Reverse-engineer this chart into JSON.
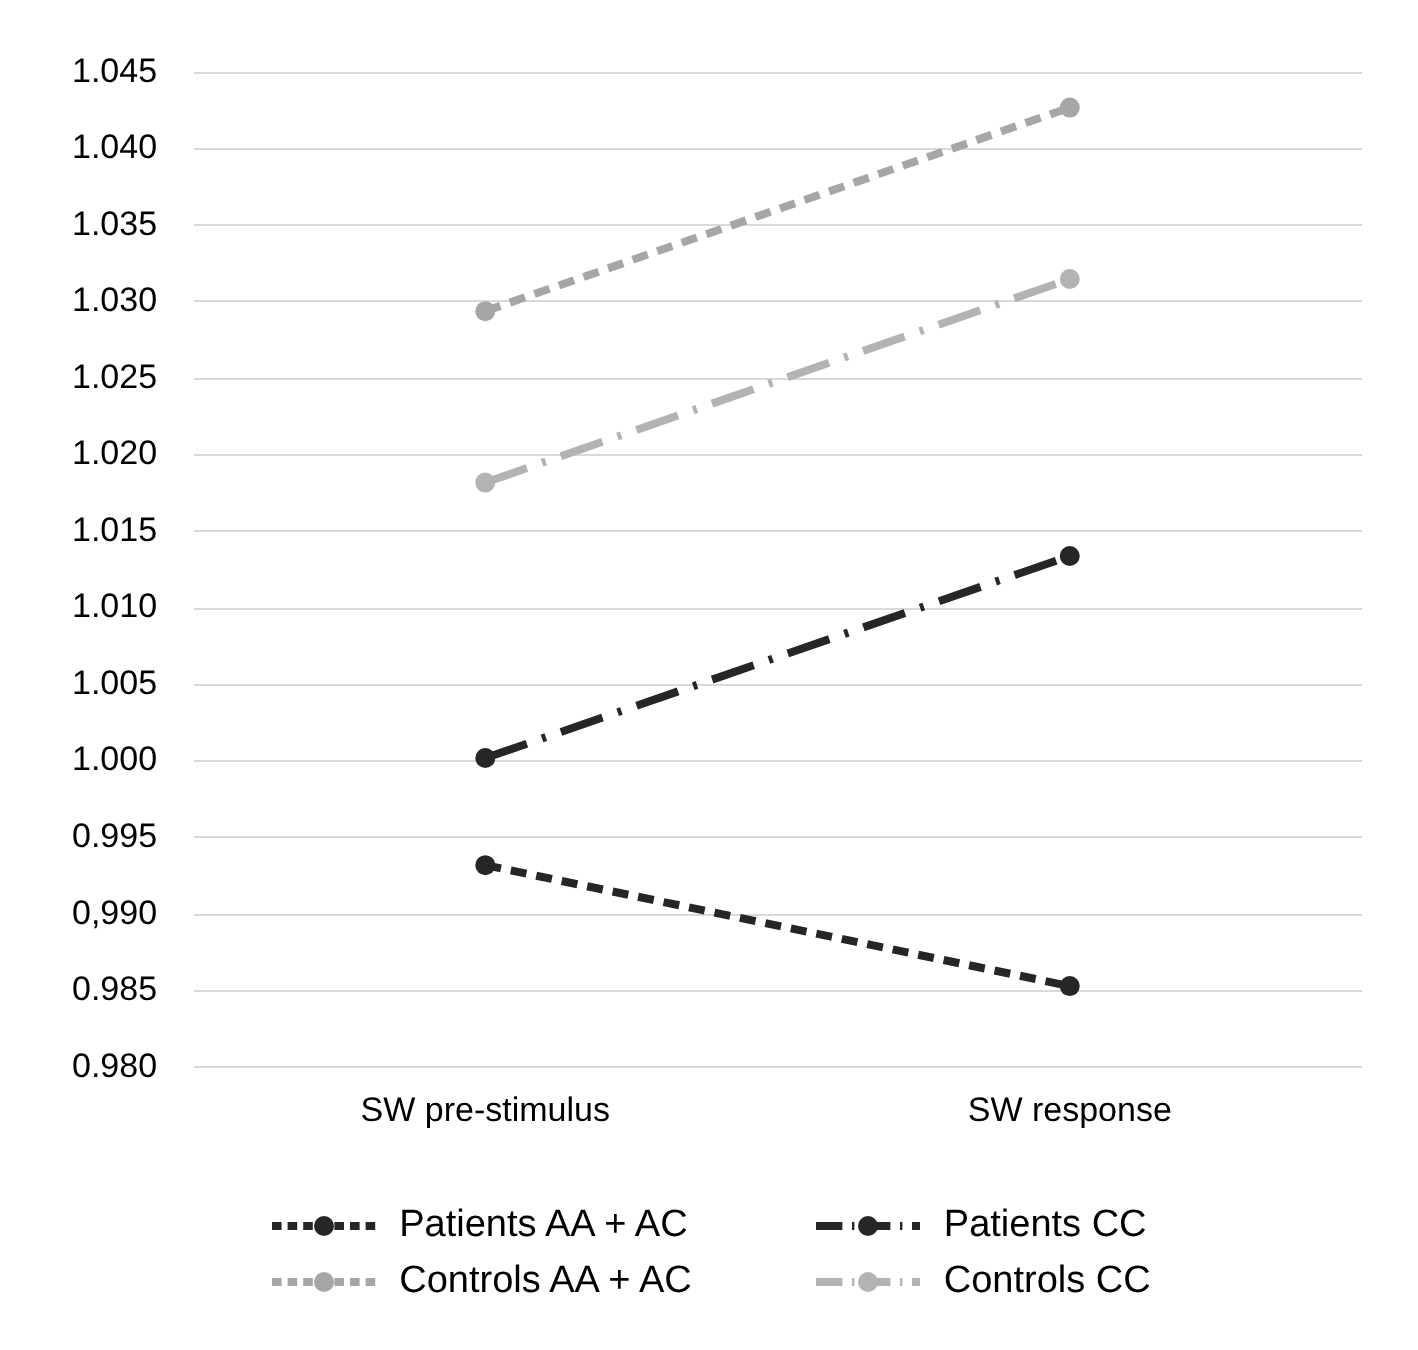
{
  "chart_data": {
    "type": "line",
    "categories": [
      "SW pre-stimulus",
      "SW response"
    ],
    "series": [
      {
        "name": "Patients AA + AC",
        "color": "#262626",
        "values": [
          0.9932,
          0.9853
        ],
        "line_style": "dashed"
      },
      {
        "name": "Patients CC",
        "color": "#262626",
        "values": [
          1.0002,
          1.0134
        ],
        "line_style": "dashdot"
      },
      {
        "name": "Controls AA + AC",
        "color": "#a6a6a6",
        "values": [
          1.0294,
          1.0427
        ],
        "line_style": "dashed"
      },
      {
        "name": "Controls CC",
        "color": "#b3b3b3",
        "values": [
          1.0182,
          1.0315
        ],
        "line_style": "dashdot"
      }
    ],
    "ylim": [
      0.98,
      1.045
    ],
    "yticks": [
      {
        "value": 0.98,
        "label": "0.980"
      },
      {
        "value": 0.985,
        "label": "0.985"
      },
      {
        "value": 0.99,
        "label": "0,990"
      },
      {
        "value": 0.995,
        "label": "0.995"
      },
      {
        "value": 1,
        "label": "1.000"
      },
      {
        "value": 1.005,
        "label": "1.005"
      },
      {
        "value": 1.01,
        "label": "1.010"
      },
      {
        "value": 1.015,
        "label": "1.015"
      },
      {
        "value": 1.02,
        "label": "1.020"
      },
      {
        "value": 1.025,
        "label": "1.025"
      },
      {
        "value": 1.03,
        "label": "1.030"
      },
      {
        "value": 1.035,
        "label": "1.035"
      },
      {
        "value": 1.04,
        "label": "1.040"
      },
      {
        "value": 1.045,
        "label": "1.045"
      }
    ],
    "grid": "y",
    "legend": "bottom",
    "marker": "circle"
  }
}
